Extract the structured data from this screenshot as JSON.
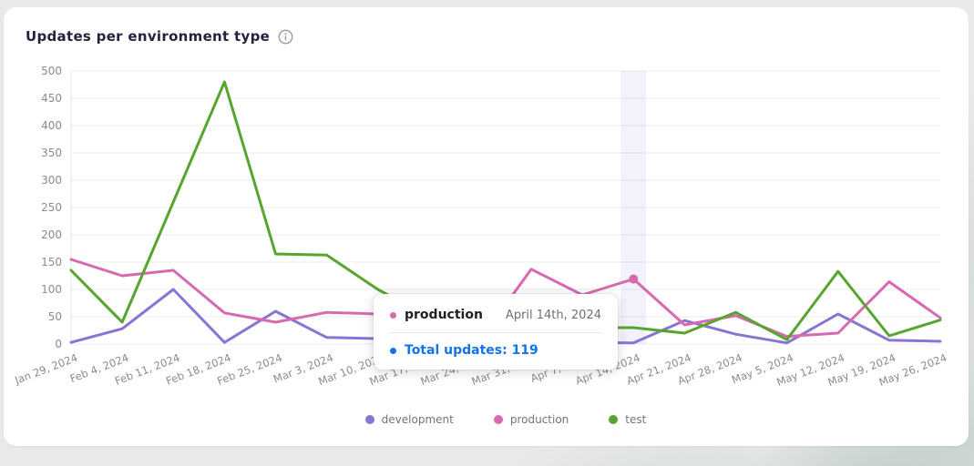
{
  "header": {
    "title": "Updates per environment type"
  },
  "chart_data": {
    "type": "line",
    "title": "Updates per environment type",
    "categories": [
      "Jan 29, 2024",
      "Feb 4, 2024",
      "Feb 11, 2024",
      "Feb 18, 2024",
      "Feb 25, 2024",
      "Mar 3, 2024",
      "Mar 10, 2024",
      "Mar 17, 2024",
      "Mar 24, 2024",
      "Mar 31, 2024",
      "Apr 7, 2024",
      "Apr 14, 2024",
      "Apr 21, 2024",
      "Apr 28, 2024",
      "May 5, 2024",
      "May 12, 2024",
      "May 19, 2024",
      "May 26, 2024"
    ],
    "series": [
      {
        "name": "development",
        "color": "#8974d4",
        "values": [
          3,
          28,
          100,
          3,
          60,
          12,
          10,
          8,
          6,
          5,
          3,
          2,
          43,
          18,
          2,
          55,
          7,
          5
        ]
      },
      {
        "name": "production",
        "color": "#d869af",
        "values": [
          155,
          125,
          135,
          57,
          40,
          58,
          55,
          50,
          8,
          137,
          90,
          119,
          35,
          52,
          14,
          20,
          114,
          48
        ]
      },
      {
        "name": "test",
        "color": "#56a52f",
        "values": [
          135,
          40,
          260,
          480,
          165,
          163,
          100,
          50,
          40,
          35,
          30,
          30,
          20,
          58,
          8,
          133,
          15,
          44
        ]
      }
    ],
    "ylim": [
      0,
      500
    ],
    "ytick_step": 50,
    "grid": "horizontal",
    "legend_position": "bottom",
    "hover": {
      "index": 11,
      "series": "production",
      "band_color": "rgba(138,116,212,0.10)"
    }
  },
  "tooltip": {
    "series_label": "production",
    "series_color": "#d869af",
    "date": "April 14th, 2024",
    "total_label": "Total updates: 119",
    "total_color": "#1474e6"
  },
  "legend": {
    "items": [
      {
        "label": "development",
        "color": "#8974d4"
      },
      {
        "label": "production",
        "color": "#d869af"
      },
      {
        "label": "test",
        "color": "#56a52f"
      }
    ]
  }
}
